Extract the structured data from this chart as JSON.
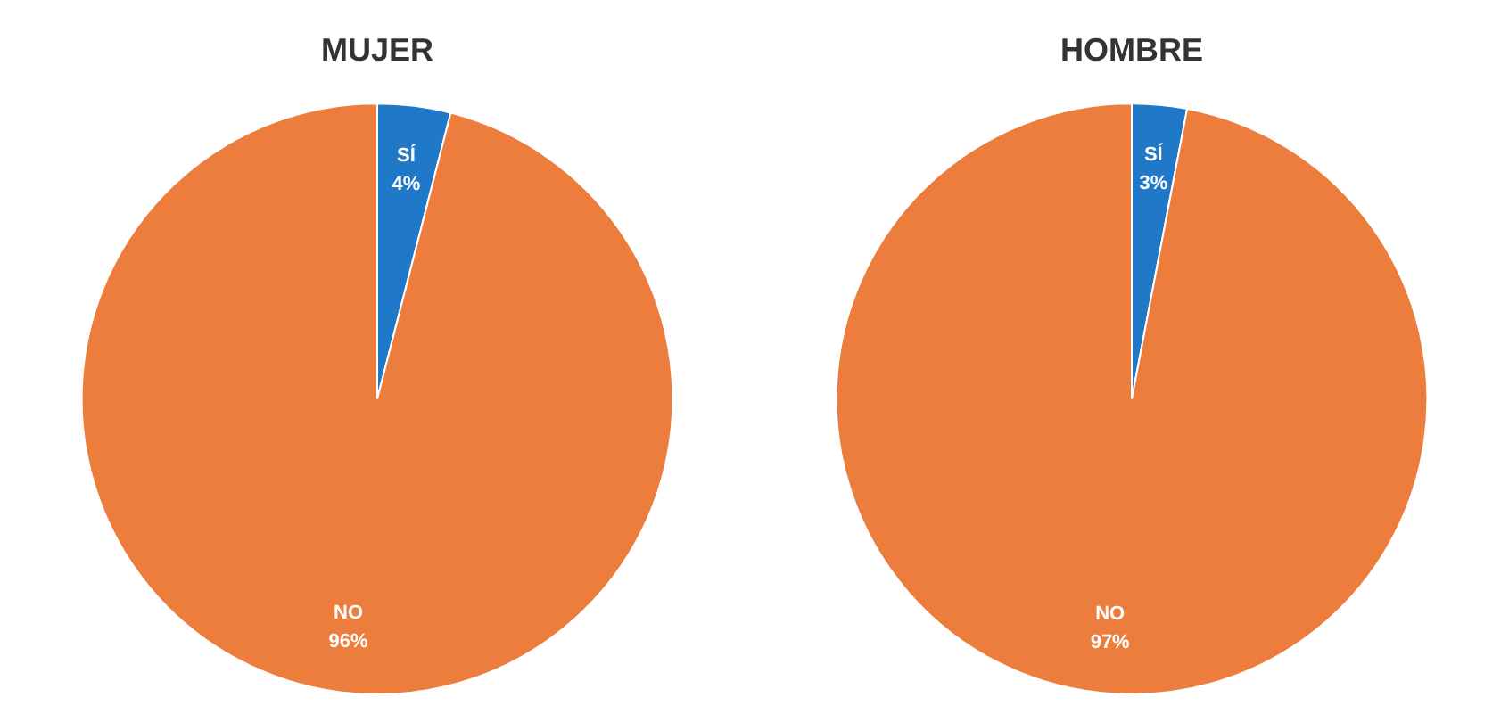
{
  "chart_data": [
    {
      "type": "pie",
      "title": "MUJER",
      "categories": [
        "SÍ",
        "NO"
      ],
      "values": [
        4,
        96
      ],
      "colors": [
        "#1f78c8",
        "#ed7d3c"
      ],
      "value_labels": [
        "4%",
        "96%"
      ],
      "legend": false
    },
    {
      "type": "pie",
      "title": "HOMBRE",
      "categories": [
        "SÍ",
        "NO"
      ],
      "values": [
        3,
        97
      ],
      "colors": [
        "#1f78c8",
        "#ed7d3c"
      ],
      "value_labels": [
        "3%",
        "97%"
      ],
      "legend": false
    }
  ]
}
